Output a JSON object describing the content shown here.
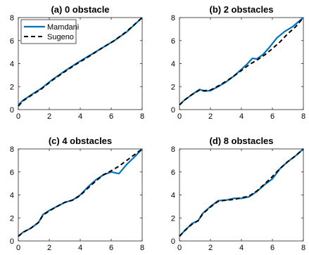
{
  "colors": {
    "mamdani": "#0072BD",
    "sugeno": "#000000",
    "axis": "#262626"
  },
  "chart_data": [
    {
      "type": "line",
      "title": "(a) 0 obstacle",
      "xlim": [
        0,
        8
      ],
      "ylim": [
        0,
        8
      ],
      "xticks": [
        "0",
        "2",
        "4",
        "6",
        "8"
      ],
      "yticks": [
        "0",
        "2",
        "4",
        "6",
        "8"
      ],
      "grid": false,
      "legend": {
        "placement": "top-left",
        "entries": [
          "Mamdani",
          "Sugeno"
        ]
      },
      "series": [
        {
          "name": "Mamdani",
          "style": "solid",
          "x": [
            0,
            0.3,
            0.8,
            1.5,
            2.2,
            3,
            3.8,
            4.6,
            5.4,
            6.2,
            7,
            8
          ],
          "y": [
            0.4,
            0.8,
            1.25,
            1.85,
            2.6,
            3.35,
            4.05,
            4.7,
            5.35,
            6.0,
            6.75,
            8.0
          ]
        },
        {
          "name": "Sugeno",
          "style": "dashed",
          "x": [
            0,
            0.3,
            0.8,
            1.5,
            2.2,
            3,
            3.8,
            4.6,
            5.4,
            6.2,
            7,
            8
          ],
          "y": [
            0.3,
            0.75,
            1.2,
            1.8,
            2.55,
            3.3,
            4.0,
            4.65,
            5.35,
            6.0,
            6.8,
            8.0
          ]
        }
      ]
    },
    {
      "type": "line",
      "title": "(b) 2 obstacles",
      "xlim": [
        0,
        8
      ],
      "ylim": [
        0,
        8
      ],
      "xticks": [
        "0",
        "2",
        "4",
        "6",
        "8"
      ],
      "yticks": [
        "0",
        "2",
        "4",
        "6",
        "8"
      ],
      "grid": false,
      "series": [
        {
          "name": "Mamdani",
          "style": "solid",
          "x": [
            0,
            0.3,
            0.8,
            1.3,
            1.6,
            2,
            2.5,
            3,
            3.5,
            4,
            4.4,
            4.7,
            5,
            5.4,
            5.8,
            6.3,
            6.8,
            7.3,
            8
          ],
          "y": [
            0.4,
            0.8,
            1.3,
            1.75,
            1.6,
            1.65,
            2.0,
            2.4,
            2.9,
            3.5,
            4.0,
            4.45,
            4.4,
            4.8,
            5.4,
            6.25,
            6.8,
            7.2,
            8.0
          ]
        },
        {
          "name": "Sugeno",
          "style": "dashed",
          "x": [
            0,
            0.3,
            0.8,
            1.3,
            1.6,
            2,
            2.5,
            3,
            3.5,
            4,
            4.5,
            5,
            5.5,
            6,
            6.5,
            7,
            7.5,
            8
          ],
          "y": [
            0.4,
            0.8,
            1.3,
            1.7,
            1.65,
            1.7,
            2.05,
            2.45,
            2.9,
            3.4,
            3.9,
            4.3,
            4.75,
            5.3,
            5.9,
            6.6,
            7.2,
            8.0
          ]
        }
      ]
    },
    {
      "type": "line",
      "title": "(c) 4 obstacles",
      "xlim": [
        0,
        8
      ],
      "ylim": [
        0,
        8
      ],
      "xticks": [
        "0",
        "2",
        "4",
        "6",
        "8"
      ],
      "yticks": [
        "0",
        "2",
        "4",
        "6",
        "8"
      ],
      "grid": false,
      "series": [
        {
          "name": "Mamdani",
          "style": "solid",
          "x": [
            0,
            0.3,
            0.8,
            1.3,
            1.6,
            2,
            2.5,
            3,
            3.5,
            4,
            4.5,
            5,
            5.5,
            6,
            6.5,
            7,
            7.5,
            8
          ],
          "y": [
            0.4,
            0.75,
            1.1,
            1.6,
            2.3,
            2.65,
            3.0,
            3.35,
            3.55,
            4.0,
            4.7,
            5.3,
            5.75,
            6.0,
            5.85,
            6.65,
            7.3,
            8.0
          ]
        },
        {
          "name": "Sugeno",
          "style": "dashed",
          "x": [
            0,
            0.3,
            0.8,
            1.3,
            1.6,
            2,
            2.5,
            3,
            3.5,
            4,
            4.5,
            5,
            5.5,
            6,
            6.5,
            7,
            7.5,
            8
          ],
          "y": [
            0.4,
            0.75,
            1.1,
            1.6,
            2.25,
            2.6,
            3.0,
            3.35,
            3.55,
            3.95,
            4.6,
            5.2,
            5.75,
            6.1,
            6.5,
            7.0,
            7.5,
            8.0
          ]
        }
      ]
    },
    {
      "type": "line",
      "title": "(d) 8 obstacles",
      "xlim": [
        0,
        8
      ],
      "ylim": [
        0,
        8
      ],
      "xticks": [
        "0",
        "2",
        "4",
        "6",
        "8"
      ],
      "yticks": [
        "0",
        "2",
        "4",
        "6",
        "8"
      ],
      "grid": false,
      "series": [
        {
          "name": "Mamdani",
          "style": "solid",
          "x": [
            0,
            0.3,
            0.8,
            1.2,
            1.5,
            2,
            2.5,
            3,
            3.5,
            4,
            4.5,
            5,
            5.5,
            6,
            6.5,
            7,
            7.5,
            8
          ],
          "y": [
            0.4,
            0.85,
            1.5,
            1.75,
            2.4,
            3.0,
            3.5,
            3.55,
            3.7,
            3.7,
            3.85,
            4.3,
            4.9,
            5.4,
            6.3,
            6.9,
            7.4,
            8.0
          ]
        },
        {
          "name": "Sugeno",
          "style": "dashed",
          "x": [
            0,
            0.3,
            0.8,
            1.2,
            1.5,
            2,
            2.5,
            3,
            3.5,
            4,
            4.5,
            5,
            5.5,
            6,
            6.5,
            7,
            7.5,
            8
          ],
          "y": [
            0.4,
            0.85,
            1.45,
            1.75,
            2.35,
            2.95,
            3.45,
            3.55,
            3.6,
            3.75,
            3.9,
            4.35,
            4.95,
            5.6,
            6.3,
            6.9,
            7.4,
            8.0
          ]
        }
      ]
    }
  ]
}
